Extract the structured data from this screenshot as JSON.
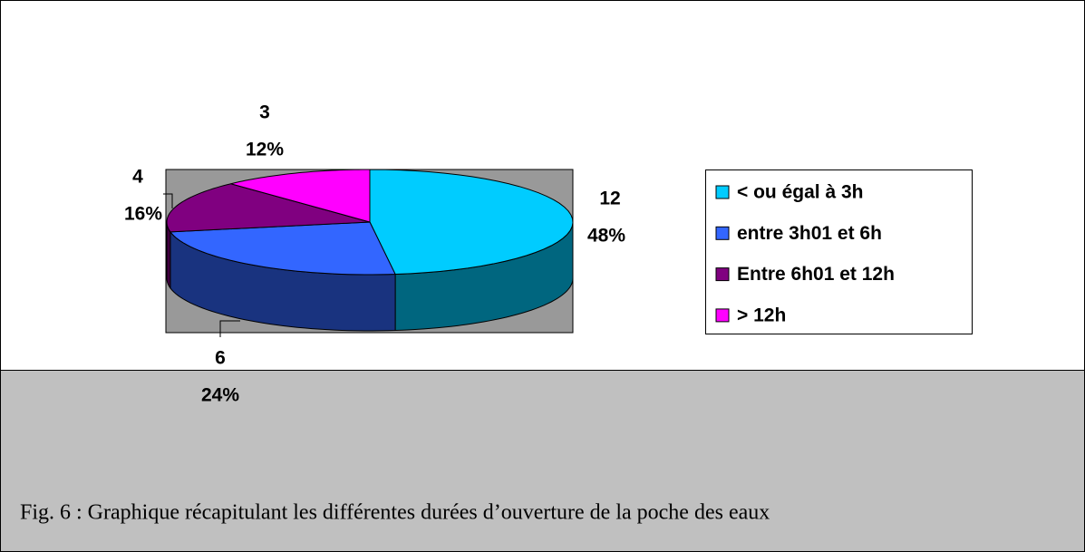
{
  "chart_data": {
    "type": "pie3d",
    "categories": [
      "< ou égal à 3h",
      "entre 3h01 et 6h",
      "Entre 6h01 et 12h",
      "> 12h"
    ],
    "values": [
      12,
      6,
      4,
      3
    ],
    "percent_labels": [
      "48%",
      "24%",
      "16%",
      "12%"
    ],
    "colors": [
      "#00ccff",
      "#3366ff",
      "#800080",
      "#ff00ff"
    ],
    "legend": "right"
  },
  "caption": "Fig. 6 : Graphique récapitulant les différentes durées d’ouverture de la poche des eaux"
}
